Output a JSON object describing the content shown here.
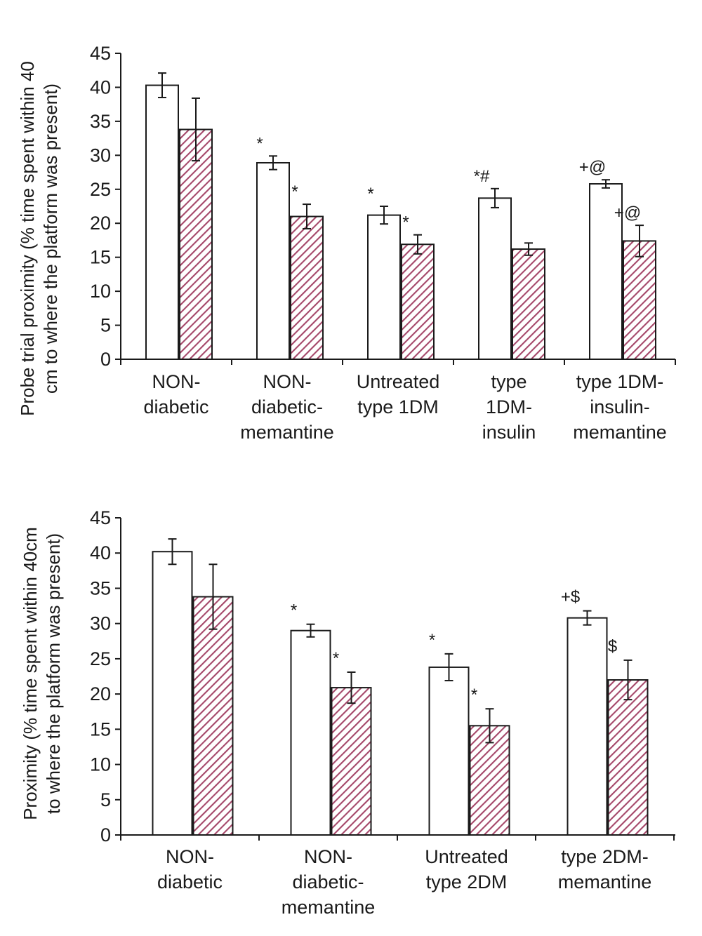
{
  "colors": {
    "bar_open_fill": "#ffffff",
    "bar_stroke": "#1a1a1a",
    "hatch_base": "#ffffff",
    "hatch_line": "#a5486a"
  },
  "chart_data": [
    {
      "type": "bar",
      "ylabel_lines": [
        "Probe trial proximity (% time spent within 40",
        "cm to where the platform was present)"
      ],
      "ylim": [
        0,
        45
      ],
      "yticks": [
        0,
        5,
        10,
        15,
        20,
        25,
        30,
        35,
        40,
        45
      ],
      "categories": [
        [
          "NON-",
          "diabetic"
        ],
        [
          "NON-",
          "diabetic-",
          "memantine"
        ],
        [
          "Untreated",
          "type 1DM"
        ],
        [
          "type",
          "1DM-",
          "insulin"
        ],
        [
          "type 1DM-",
          "insulin-",
          "memantine"
        ]
      ],
      "series": [
        {
          "name": "open",
          "style": "open",
          "values": [
            40.3,
            28.9,
            21.2,
            23.7,
            25.8
          ],
          "errors": [
            1.8,
            1.0,
            1.3,
            1.4,
            0.6
          ],
          "annotations": [
            "",
            "*",
            "*",
            "*#",
            "+@"
          ]
        },
        {
          "name": "hatched",
          "style": "hatched",
          "values": [
            33.8,
            21.0,
            16.9,
            16.2,
            17.4
          ],
          "errors": [
            4.6,
            1.8,
            1.4,
            0.9,
            2.3
          ],
          "annotations": [
            "",
            "*",
            "*",
            "",
            "+@"
          ]
        }
      ]
    },
    {
      "type": "bar",
      "ylabel_lines": [
        "Proximity (% time spent within 40cm",
        "to where the platform was present)"
      ],
      "ylim": [
        0,
        45
      ],
      "yticks": [
        0,
        5,
        10,
        15,
        20,
        25,
        30,
        35,
        40,
        45
      ],
      "categories": [
        [
          "NON-",
          "diabetic"
        ],
        [
          "NON-",
          "diabetic-",
          "memantine"
        ],
        [
          "Untreated",
          "type 2DM"
        ],
        [
          "type 2DM-",
          "memantine"
        ]
      ],
      "series": [
        {
          "name": "open",
          "style": "open",
          "values": [
            40.2,
            29.0,
            23.8,
            30.8
          ],
          "errors": [
            1.8,
            0.9,
            1.9,
            1.0
          ],
          "annotations": [
            "",
            "*",
            "*",
            "+$"
          ]
        },
        {
          "name": "hatched",
          "style": "hatched",
          "values": [
            33.8,
            20.9,
            15.5,
            22.0
          ],
          "errors": [
            4.6,
            2.2,
            2.4,
            2.8
          ],
          "annotations": [
            "",
            "*",
            "*",
            "$"
          ]
        }
      ]
    }
  ]
}
